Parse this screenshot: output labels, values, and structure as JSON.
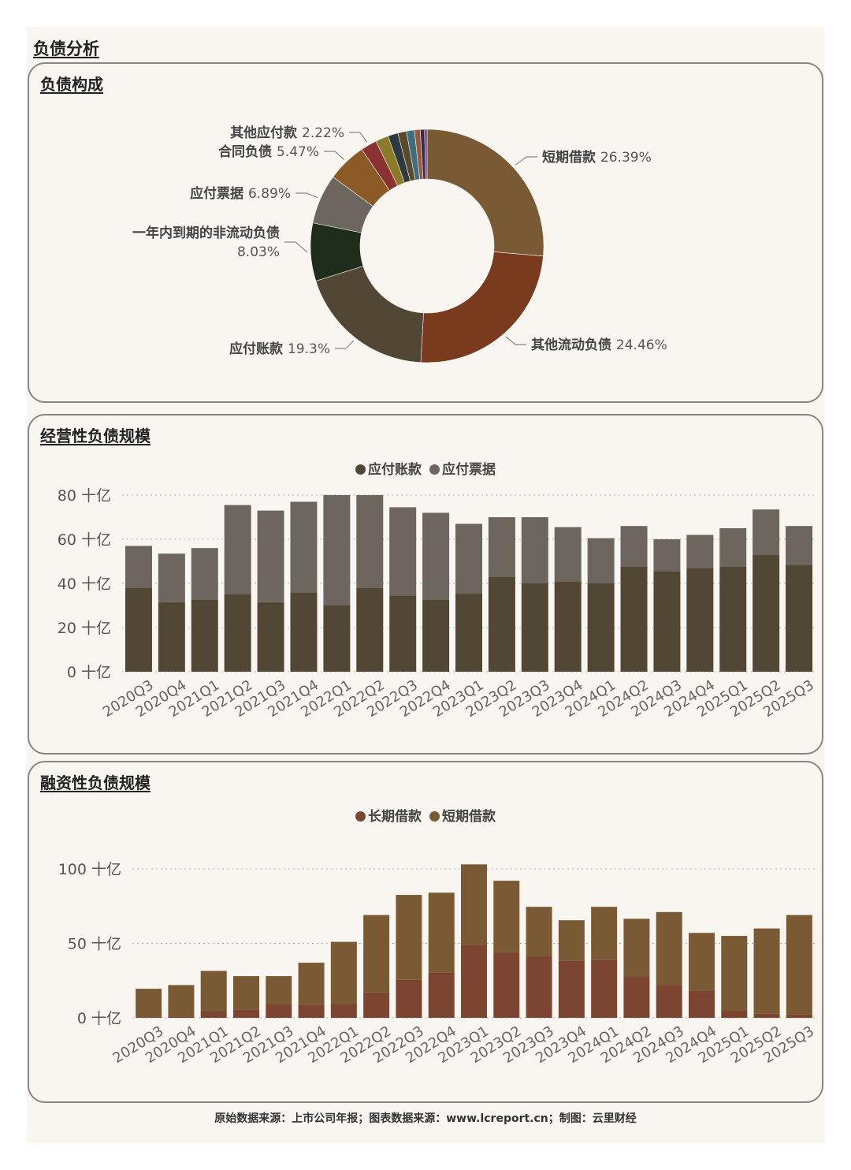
{
  "page_title": "负债分析",
  "footer": "原始数据来源：上市公司年报；图表数据来源：www.lcreport.cn；制图：云里财经",
  "colors": {
    "short_loan": "#7a5a34",
    "other_current": "#7a3a1e",
    "payable_accounts": "#524735",
    "noncurrent_due": "#1f2e1c",
    "payable_notes": "#6d665e",
    "contract": "#8c5a26",
    "other_payable": "#8a3232",
    "long_loan": "#7b4532"
  },
  "chart_data": [
    {
      "type": "pie",
      "title": "负债构成",
      "donut": true,
      "slices": [
        {
          "label": "短期借款",
          "value": 26.39,
          "display": "26.39%",
          "color": "#7a5a34",
          "labeled": true
        },
        {
          "label": "其他流动负债",
          "value": 24.46,
          "display": "24.46%",
          "color": "#7a3a1e",
          "labeled": true
        },
        {
          "label": "应付账款",
          "value": 19.3,
          "display": "19.3%",
          "color": "#524735",
          "labeled": true
        },
        {
          "label": "一年内到期的非流动负债",
          "value": 8.03,
          "display": "8.03%",
          "color": "#1f2e1c",
          "labeled": true
        },
        {
          "label": "应付票据",
          "value": 6.89,
          "display": "6.89%",
          "color": "#6d665e",
          "labeled": true
        },
        {
          "label": "合同负债",
          "value": 5.47,
          "display": "5.47%",
          "color": "#8c5a26",
          "labeled": true
        },
        {
          "label": "其他应付款",
          "value": 2.22,
          "display": "2.22%",
          "color": "#8a3232",
          "labeled": true
        },
        {
          "label": "",
          "value": 1.8,
          "display": "",
          "color": "#8a7a2a",
          "labeled": false
        },
        {
          "label": "",
          "value": 1.4,
          "display": "",
          "color": "#2e3a40",
          "labeled": false
        },
        {
          "label": "",
          "value": 1.2,
          "display": "",
          "color": "#5a4a2e",
          "labeled": false
        },
        {
          "label": "",
          "value": 1.1,
          "display": "",
          "color": "#3f6e80",
          "labeled": false
        },
        {
          "label": "",
          "value": 0.8,
          "display": "",
          "color": "#9a5a3a",
          "labeled": false
        },
        {
          "label": "",
          "value": 0.6,
          "display": "",
          "color": "#3a2a4a",
          "labeled": false
        },
        {
          "label": "",
          "value": 0.34,
          "display": "",
          "color": "#6a3a8a",
          "labeled": false
        }
      ]
    },
    {
      "type": "bar",
      "stacked": true,
      "title": "经营性负债规模",
      "categories": [
        "2020Q3",
        "2020Q4",
        "2021Q1",
        "2021Q2",
        "2021Q3",
        "2021Q4",
        "2022Q1",
        "2022Q2",
        "2022Q3",
        "2022Q4",
        "2023Q1",
        "2023Q2",
        "2023Q3",
        "2023Q4",
        "2024Q1",
        "2024Q2",
        "2024Q3",
        "2024Q4",
        "2025Q1",
        "2025Q2",
        "2025Q3"
      ],
      "series": [
        {
          "name": "应付账款",
          "color": "#524735",
          "values": [
            38,
            31.5,
            32.5,
            35,
            31.5,
            36,
            30,
            38,
            34.5,
            32.5,
            35.5,
            43,
            40,
            41,
            40,
            47.5,
            45.5,
            47,
            47.5,
            53,
            48.5
          ]
        },
        {
          "name": "应付票据",
          "color": "#6d665e",
          "values": [
            19,
            22,
            23.5,
            40.5,
            41.5,
            41,
            50,
            42,
            40,
            39.5,
            31.5,
            27,
            30,
            24.5,
            20.5,
            18.5,
            14.5,
            15,
            17.5,
            20.5,
            17.5
          ]
        }
      ],
      "yticks": [
        0,
        20,
        40,
        60,
        80
      ],
      "ytick_labels": [
        "0 十亿",
        "20 十亿",
        "40 十亿",
        "60 十亿",
        "80 十亿"
      ],
      "ylim": [
        0,
        80
      ],
      "grid": true,
      "legend": "top-center"
    },
    {
      "type": "bar",
      "stacked": true,
      "title": "融资性负债规模",
      "categories": [
        "2020Q3",
        "2020Q4",
        "2021Q1",
        "2021Q2",
        "2021Q3",
        "2021Q4",
        "2022Q1",
        "2022Q2",
        "2022Q3",
        "2022Q4",
        "2023Q1",
        "2023Q2",
        "2023Q3",
        "2023Q4",
        "2024Q1",
        "2024Q2",
        "2024Q3",
        "2024Q4",
        "2025Q1",
        "2025Q2",
        "2025Q3"
      ],
      "series": [
        {
          "name": "长期借款",
          "color": "#7b4532",
          "values": [
            0.5,
            1,
            4.5,
            5.5,
            9,
            8.5,
            9,
            17,
            25.5,
            30.5,
            49,
            44,
            41,
            38.5,
            39,
            28,
            22,
            18,
            5,
            3,
            2.5
          ]
        },
        {
          "name": "短期借款",
          "color": "#7a5a34",
          "values": [
            19,
            21,
            27,
            22.5,
            19,
            28.5,
            42,
            52,
            57,
            53.5,
            54,
            48,
            33.5,
            27,
            35.5,
            38.5,
            49,
            39,
            50,
            57,
            66.5
          ]
        }
      ],
      "yticks": [
        0,
        50,
        100
      ],
      "ytick_labels": [
        "0 十亿",
        "50 十亿",
        "100 十亿"
      ],
      "ylim": [
        0,
        100
      ],
      "grid": true,
      "legend": "top-center"
    }
  ]
}
